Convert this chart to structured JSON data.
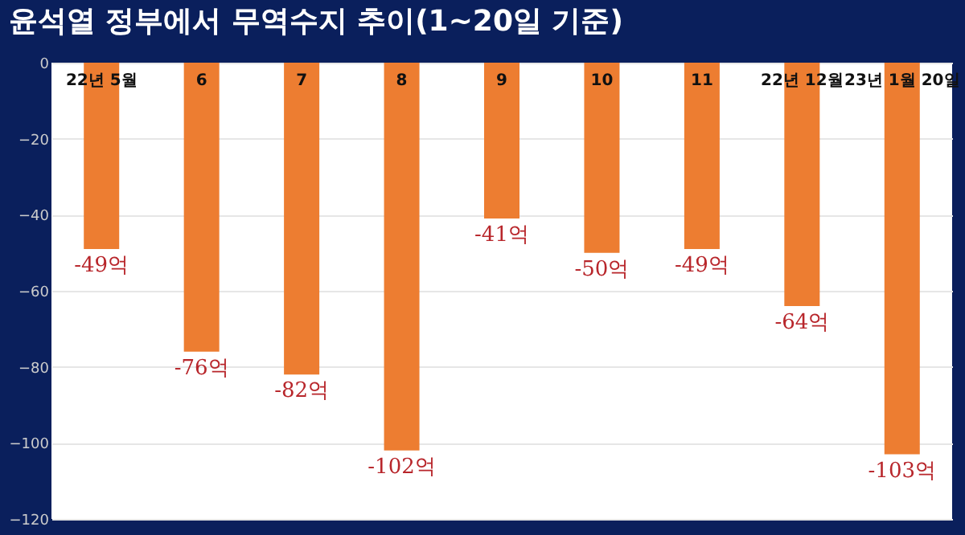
{
  "chart_data": {
    "type": "bar",
    "title": "윤석열 정부에서 무역수지 추이(1~20일 기준)",
    "categories": [
      "22년 5월",
      "6",
      "7",
      "8",
      "9",
      "10",
      "11",
      "22년 12월",
      "23년 1월 20일"
    ],
    "values": [
      -49,
      -76,
      -82,
      -102,
      -41,
      -50,
      -49,
      -64,
      -103
    ],
    "value_labels": [
      "-49억",
      "-76억",
      "-82억",
      "-102억",
      "-41억",
      "-50억",
      "-49억",
      "-64억",
      "-103억"
    ],
    "color": "#ed7d31",
    "ylim": [
      -120,
      0
    ],
    "yticks": [
      0,
      -20,
      -40,
      -60,
      -80,
      -100,
      -120
    ],
    "grid": "y"
  }
}
